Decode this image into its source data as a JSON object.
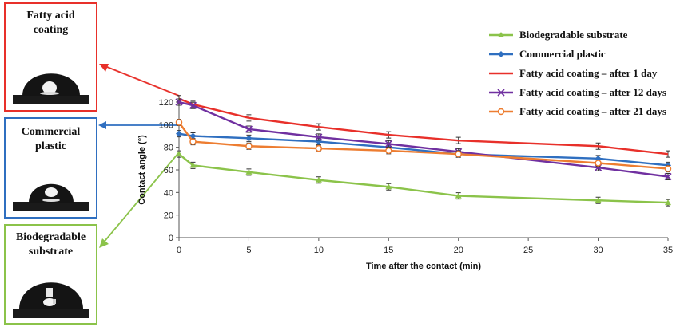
{
  "panels": [
    {
      "title": "Fatty acid\ncoating",
      "color": "#e8302a"
    },
    {
      "title": "Commercial\nplastic",
      "color": "#2f6fc0"
    },
    {
      "title": "Biodegradable\nsubstrate",
      "color": "#8bc34a"
    }
  ],
  "chart_data": {
    "type": "line",
    "xlabel": "Time after the contact (min)",
    "ylabel": "Contact angle (°)",
    "xlim": [
      0,
      35
    ],
    "ylim": [
      0,
      120
    ],
    "xticks": [
      "0",
      "5",
      "10",
      "15",
      "20",
      "25",
      "30",
      "35"
    ],
    "yticks": [
      "0",
      "20",
      "40",
      "60",
      "80",
      "100",
      "120"
    ],
    "legend_position": "top-right",
    "series": [
      {
        "name": "Biodegradable substrate",
        "color": "#8bc34a",
        "marker": "triangle",
        "x": [
          0,
          1,
          5,
          10,
          15,
          20,
          30,
          35
        ],
        "y": [
          74,
          64,
          58,
          51,
          45,
          37,
          33,
          31
        ]
      },
      {
        "name": "Commercial plastic",
        "color": "#2f6fc0",
        "marker": "diamond",
        "x": [
          0,
          1,
          5,
          10,
          15,
          20,
          30,
          35
        ],
        "y": [
          92,
          90,
          88,
          85,
          80,
          74,
          70,
          64
        ]
      },
      {
        "name": "Fatty acid coating – after 1 day",
        "color": "#e8302a",
        "marker": "none",
        "x": [
          0,
          1,
          5,
          10,
          15,
          20,
          30,
          35
        ],
        "y": [
          123,
          118,
          106,
          98,
          91,
          86,
          81,
          74
        ]
      },
      {
        "name": "Fatty acid coating – after 12 days",
        "color": "#7030a0",
        "marker": "x",
        "x": [
          0,
          1,
          5,
          10,
          15,
          20,
          30,
          35
        ],
        "y": [
          120,
          117,
          96,
          89,
          83,
          76,
          62,
          54
        ]
      },
      {
        "name": "Fatty acid coating – after 21 days",
        "color": "#ed7d31",
        "marker": "circle",
        "x": [
          0,
          1,
          5,
          10,
          15,
          20,
          30,
          35
        ],
        "y": [
          102,
          85,
          81,
          79,
          77,
          74,
          66,
          61
        ]
      }
    ]
  }
}
